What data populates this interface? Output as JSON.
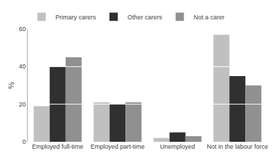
{
  "chart_data": {
    "type": "bar",
    "categories": [
      "Employed full-time",
      "Employed part-time",
      "Unemployed",
      "Not in the labour force"
    ],
    "series": [
      {
        "name": "Primary carers",
        "color": "#c0c0c0",
        "values": [
          19,
          21,
          2,
          57
        ]
      },
      {
        "name": "Other carers",
        "color": "#303030",
        "values": [
          40,
          20,
          5,
          35
        ]
      },
      {
        "name": "Not a carer",
        "color": "#909090",
        "values": [
          45,
          21,
          3,
          30
        ]
      }
    ],
    "ylabel": "%",
    "ylim": [
      0,
      60
    ],
    "yticks": [
      0,
      20,
      40,
      60
    ],
    "grid": true,
    "legend": "upper left"
  }
}
